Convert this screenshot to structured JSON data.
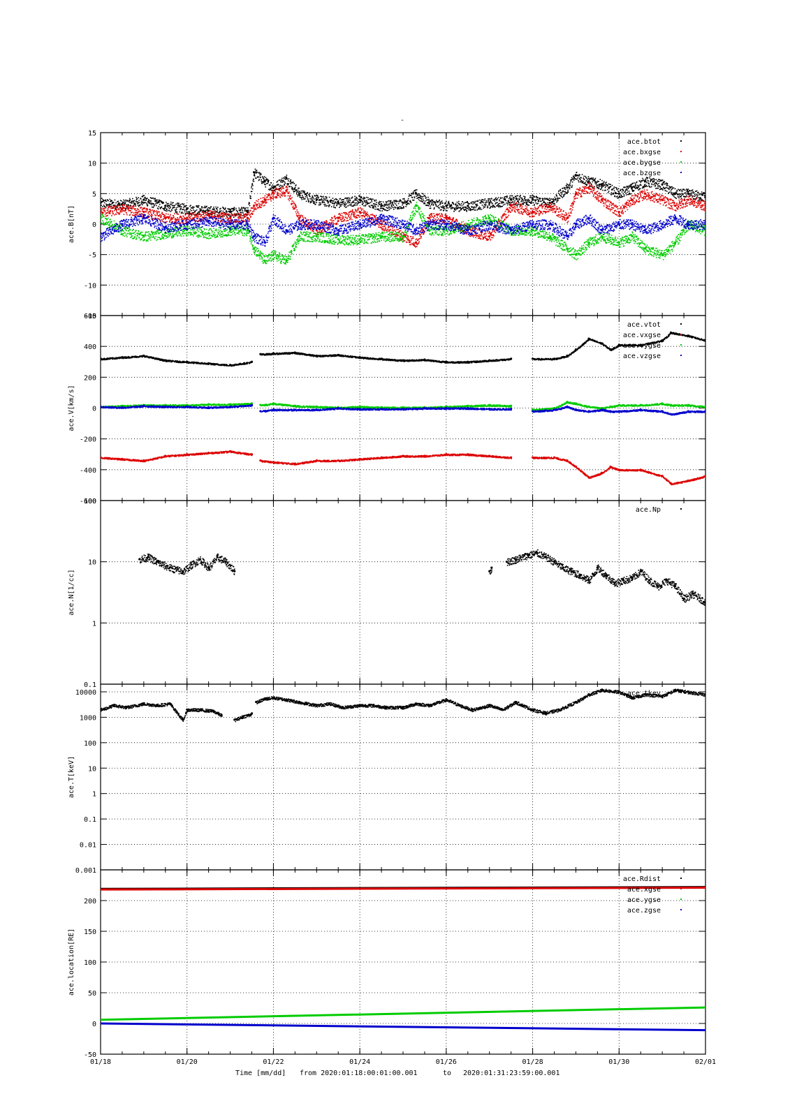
{
  "figure": {
    "top_mark": "-",
    "xlabel_parts": [
      "Time [mm/dd]",
      "from 2020:01:18:00:01:00.001",
      "to",
      "2020:01:31:23:59:00.001"
    ]
  },
  "chart_data": [
    {
      "type": "scatter",
      "ylabel": "ace.B[nT]",
      "ylim": [
        -15,
        15
      ],
      "yscale": "linear",
      "yticks": [
        -15,
        -10,
        -5,
        0,
        5,
        10,
        15
      ],
      "x_ticks_days": [
        18,
        20,
        22,
        24,
        26,
        28,
        30,
        32
      ],
      "grid": true,
      "legend_position": "top-right",
      "series": [
        {
          "name": "ace.btot",
          "color": "#000000",
          "x": [
            18.0,
            18.5,
            19.0,
            19.5,
            20.0,
            20.5,
            21.0,
            21.4,
            21.55,
            21.8,
            22.0,
            22.3,
            22.6,
            23.0,
            23.5,
            24.0,
            24.5,
            25.0,
            25.3,
            25.6,
            26.0,
            26.5,
            27.0,
            27.5,
            28.0,
            28.4,
            28.8,
            29.0,
            29.3,
            29.6,
            30.0,
            30.3,
            30.6,
            31.0,
            31.3,
            31.6,
            32.0
          ],
          "y": [
            3.5,
            3.2,
            4.0,
            3.0,
            2.5,
            2.2,
            2.0,
            2.0,
            8.5,
            7.0,
            6.0,
            7.5,
            5.0,
            4.0,
            3.5,
            4.0,
            3.0,
            3.5,
            5.0,
            3.5,
            3.0,
            3.0,
            3.5,
            4.0,
            4.0,
            3.5,
            6.0,
            8.0,
            7.0,
            6.5,
            5.0,
            6.0,
            7.0,
            6.5,
            5.0,
            5.0,
            4.5
          ]
        },
        {
          "name": "ace.bxgse",
          "color": "#dd0000",
          "x": [
            18.0,
            18.5,
            19.0,
            19.5,
            20.0,
            20.5,
            21.0,
            21.4,
            21.55,
            21.8,
            22.0,
            22.3,
            22.6,
            23.0,
            23.5,
            24.0,
            24.5,
            25.0,
            25.3,
            25.6,
            26.0,
            26.5,
            27.0,
            27.5,
            28.0,
            28.4,
            28.8,
            29.0,
            29.3,
            29.6,
            30.0,
            30.3,
            30.6,
            31.0,
            31.3,
            31.6,
            32.0
          ],
          "y": [
            2.0,
            2.5,
            2.0,
            1.0,
            1.0,
            1.5,
            1.0,
            1.0,
            3.0,
            4.0,
            5.0,
            5.5,
            1.0,
            -1.0,
            1.0,
            2.0,
            0.0,
            -2.0,
            -3.0,
            1.0,
            1.0,
            -1.0,
            -2.0,
            3.0,
            2.0,
            3.0,
            1.0,
            5.0,
            6.0,
            4.0,
            2.0,
            4.0,
            5.0,
            4.0,
            3.0,
            4.0,
            3.0
          ]
        },
        {
          "name": "ace.bygse",
          "color": "#00cc00",
          "x": [
            18.0,
            18.5,
            19.0,
            19.5,
            20.0,
            20.5,
            21.0,
            21.4,
            21.55,
            21.8,
            22.0,
            22.3,
            22.6,
            23.0,
            23.5,
            24.0,
            24.5,
            25.0,
            25.3,
            25.6,
            26.0,
            26.5,
            27.0,
            27.5,
            28.0,
            28.4,
            28.8,
            29.0,
            29.3,
            29.6,
            30.0,
            30.3,
            30.6,
            31.0,
            31.3,
            31.6,
            32.0
          ],
          "y": [
            1.0,
            -1.0,
            -2.0,
            -1.5,
            -1.0,
            -1.5,
            -1.0,
            -1.0,
            -4.0,
            -6.0,
            -5.0,
            -6.0,
            -2.0,
            -2.0,
            -2.5,
            -2.5,
            -2.0,
            -2.0,
            3.0,
            -1.0,
            -1.0,
            0.0,
            1.0,
            -1.0,
            -1.0,
            -2.0,
            -4.0,
            -5.0,
            -3.0,
            -2.0,
            -3.0,
            -2.0,
            -4.0,
            -5.0,
            -3.0,
            0.0,
            -1.0
          ]
        },
        {
          "name": "ace.bzgse",
          "color": "#0000cc",
          "x": [
            18.0,
            18.5,
            19.0,
            19.5,
            20.0,
            20.5,
            21.0,
            21.4,
            21.55,
            21.8,
            22.0,
            22.3,
            22.6,
            23.0,
            23.5,
            24.0,
            24.5,
            25.0,
            25.3,
            25.6,
            26.0,
            26.5,
            27.0,
            27.5,
            28.0,
            28.4,
            28.8,
            29.0,
            29.3,
            29.6,
            30.0,
            30.3,
            30.6,
            31.0,
            31.3,
            31.6,
            32.0
          ],
          "y": [
            -2.0,
            0.0,
            1.0,
            -0.5,
            0.0,
            0.5,
            0.0,
            0.0,
            -2.0,
            -3.0,
            1.0,
            -1.0,
            0.0,
            0.0,
            -1.0,
            0.0,
            1.0,
            0.0,
            -1.0,
            0.0,
            0.0,
            -1.0,
            0.0,
            -1.0,
            0.0,
            0.0,
            -2.0,
            0.0,
            1.0,
            -1.0,
            0.0,
            0.0,
            -1.0,
            0.0,
            1.0,
            0.0,
            0.0
          ]
        }
      ]
    },
    {
      "type": "scatter",
      "ylabel": "ace.V[km/s]",
      "ylim": [
        -600,
        600
      ],
      "yscale": "linear",
      "yticks": [
        -600,
        -400,
        -200,
        0,
        200,
        400,
        600
      ],
      "x_ticks_days": [
        18,
        20,
        22,
        24,
        26,
        28,
        30,
        32
      ],
      "grid": true,
      "legend_position": "top-right",
      "series": [
        {
          "name": "ace.vtot",
          "color": "#000000",
          "x": [
            18.0,
            18.5,
            19.0,
            19.5,
            20.0,
            20.5,
            21.0,
            21.5,
            21.6,
            21.7,
            22.0,
            22.5,
            23.0,
            23.5,
            24.0,
            24.5,
            25.0,
            25.5,
            26.0,
            26.5,
            27.0,
            27.5,
            27.8,
            28.0,
            28.5,
            28.8,
            29.0,
            29.3,
            29.6,
            29.8,
            30.0,
            30.5,
            31.0,
            31.2,
            31.6,
            32.0
          ],
          "y": [
            320,
            330,
            340,
            310,
            300,
            290,
            280,
            300,
            null,
            350,
            355,
            360,
            340,
            345,
            330,
            320,
            310,
            315,
            300,
            300,
            310,
            320,
            null,
            320,
            320,
            340,
            380,
            450,
            420,
            380,
            410,
            410,
            440,
            490,
            470,
            440
          ]
        },
        {
          "name": "ace.vxgse",
          "color": "#dd0000",
          "x": [
            18.0,
            18.5,
            19.0,
            19.5,
            20.0,
            20.5,
            21.0,
            21.5,
            21.6,
            21.7,
            22.0,
            22.5,
            23.0,
            23.5,
            24.0,
            24.5,
            25.0,
            25.5,
            26.0,
            26.5,
            27.0,
            27.5,
            27.8,
            28.0,
            28.5,
            28.8,
            29.0,
            29.3,
            29.6,
            29.8,
            30.0,
            30.5,
            31.0,
            31.2,
            31.6,
            32.0
          ],
          "y": [
            -320,
            -330,
            -340,
            -310,
            -300,
            -290,
            -280,
            -300,
            null,
            -340,
            -350,
            -360,
            -340,
            -340,
            -330,
            -320,
            -310,
            -310,
            -300,
            -300,
            -310,
            -320,
            null,
            -320,
            -320,
            -340,
            -380,
            -450,
            -420,
            -380,
            -400,
            -400,
            -440,
            -490,
            -470,
            -440
          ]
        },
        {
          "name": "ace.vygse",
          "color": "#00cc00",
          "x": [
            18.0,
            18.5,
            19.0,
            19.5,
            20.0,
            20.5,
            21.0,
            21.5,
            21.6,
            21.7,
            22.0,
            22.5,
            23.0,
            23.5,
            24.0,
            24.5,
            25.0,
            25.5,
            26.0,
            26.5,
            27.0,
            27.5,
            27.8,
            28.0,
            28.5,
            28.8,
            29.0,
            29.3,
            29.6,
            29.8,
            30.0,
            30.5,
            31.0,
            31.2,
            31.6,
            32.0
          ],
          "y": [
            10,
            15,
            20,
            20,
            20,
            25,
            25,
            30,
            null,
            20,
            30,
            15,
            10,
            5,
            10,
            5,
            5,
            5,
            10,
            15,
            20,
            15,
            null,
            -10,
            0,
            40,
            30,
            10,
            0,
            10,
            20,
            20,
            30,
            20,
            20,
            10
          ]
        },
        {
          "name": "ace.vzgse",
          "color": "#0000cc",
          "x": [
            18.0,
            18.5,
            19.0,
            19.5,
            20.0,
            20.5,
            21.0,
            21.5,
            21.6,
            21.7,
            22.0,
            22.5,
            23.0,
            23.5,
            24.0,
            24.5,
            25.0,
            25.5,
            26.0,
            26.5,
            27.0,
            27.5,
            27.8,
            28.0,
            28.5,
            28.8,
            29.0,
            29.3,
            29.6,
            29.8,
            30.0,
            30.5,
            31.0,
            31.2,
            31.6,
            32.0
          ],
          "y": [
            10,
            5,
            15,
            10,
            10,
            5,
            10,
            20,
            null,
            -20,
            -10,
            -10,
            -10,
            0,
            -5,
            -5,
            -5,
            0,
            0,
            0,
            -5,
            -5,
            null,
            -20,
            -10,
            10,
            -10,
            -20,
            -10,
            -20,
            -20,
            -10,
            -20,
            -40,
            -20,
            -20
          ]
        }
      ]
    },
    {
      "type": "scatter",
      "ylabel": "ace.N[1/cc]",
      "ylim": [
        0.1,
        100
      ],
      "yscale": "log",
      "yticks": [
        0.1,
        1,
        10,
        100
      ],
      "ytick_labels": [
        "0.1",
        "1",
        "10",
        "100"
      ],
      "x_ticks_days": [
        18,
        20,
        22,
        24,
        26,
        28,
        30,
        32
      ],
      "grid": true,
      "legend_position": "top-right",
      "series": [
        {
          "name": "ace.Np",
          "color": "#000000",
          "x": [
            18.9,
            19.1,
            19.3,
            19.6,
            19.9,
            20.1,
            20.3,
            20.5,
            20.7,
            20.9,
            21.1,
            null,
            27.0,
            27.05,
            null,
            27.4,
            27.6,
            27.9,
            28.1,
            28.3,
            28.5,
            28.7,
            28.9,
            29.1,
            29.3,
            29.5,
            29.7,
            29.9,
            30.1,
            30.3,
            30.5,
            30.7,
            30.9,
            31.1,
            31.3,
            31.5,
            31.7,
            32.0
          ],
          "y": [
            11,
            12,
            10,
            8,
            7,
            9,
            11,
            8,
            12,
            10,
            7,
            null,
            7,
            8,
            null,
            10,
            11,
            13,
            14,
            12,
            10,
            8,
            7,
            6,
            5,
            8,
            6,
            4.5,
            5,
            5.5,
            7,
            5,
            4,
            5,
            4,
            2.5,
            3,
            2.2
          ]
        }
      ]
    },
    {
      "type": "scatter",
      "ylabel": "ace.T[keV]",
      "ylim": [
        0.001,
        20000
      ],
      "yscale": "log",
      "yticks": [
        0.001,
        0.01,
        0.1,
        1,
        10,
        100,
        1000,
        10000
      ],
      "ytick_labels": [
        "0.001",
        "0.01",
        "0.1",
        "1",
        "10",
        "100",
        "1000",
        "10000"
      ],
      "x_ticks_days": [
        18,
        20,
        22,
        24,
        26,
        28,
        30,
        32
      ],
      "grid": true,
      "legend_position": "top-right",
      "series": [
        {
          "name": "ace.tkev",
          "color": "#000000",
          "x": [
            18.0,
            18.3,
            18.6,
            19.0,
            19.3,
            19.6,
            19.9,
            20.0,
            20.3,
            20.6,
            20.8,
            null,
            21.1,
            21.3,
            21.5,
            null,
            21.6,
            21.8,
            22.0,
            22.3,
            22.6,
            23.0,
            23.3,
            23.6,
            24.0,
            24.3,
            24.6,
            25.0,
            25.3,
            25.6,
            26.0,
            26.3,
            26.6,
            27.0,
            27.3,
            27.6,
            28.0,
            28.3,
            28.6,
            29.0,
            29.3,
            29.6,
            30.0,
            30.3,
            30.6,
            31.0,
            31.3,
            31.6,
            32.0
          ],
          "y": [
            2000,
            3000,
            2500,
            3500,
            3000,
            3500,
            800,
            2000,
            2000,
            1800,
            1200,
            null,
            800,
            1100,
            1400,
            null,
            4000,
            5500,
            6000,
            5000,
            4000,
            3000,
            3500,
            2500,
            3000,
            3000,
            2500,
            2500,
            3500,
            3000,
            5000,
            3000,
            2000,
            3000,
            2000,
            4000,
            2000,
            1500,
            2000,
            4000,
            8000,
            12000,
            10000,
            6000,
            8000,
            7000,
            12000,
            10000,
            8000
          ]
        }
      ]
    },
    {
      "type": "line",
      "ylabel": "ace.location[RE]",
      "ylim": [
        -50,
        250
      ],
      "yscale": "linear",
      "yticks": [
        -50,
        0,
        50,
        100,
        150,
        200
      ],
      "x_ticks_days": [
        18,
        20,
        22,
        24,
        26,
        28,
        30,
        32
      ],
      "x_tick_labels": [
        "01/18",
        "01/20",
        "01/22",
        "01/24",
        "01/26",
        "01/28",
        "01/30",
        "02/01"
      ],
      "grid": true,
      "legend_position": "top-right",
      "series": [
        {
          "name": "ace.Rdist",
          "color": "#000000",
          "x": [
            18,
            32
          ],
          "y": [
            219,
            222
          ]
        },
        {
          "name": "ace.xgse",
          "color": "#dd0000",
          "x": [
            18,
            32
          ],
          "y": [
            218,
            221
          ]
        },
        {
          "name": "ace.ygse",
          "color": "#00cc00",
          "x": [
            18,
            32
          ],
          "y": [
            6,
            26
          ]
        },
        {
          "name": "ace.zgse",
          "color": "#0000cc",
          "x": [
            18,
            32
          ],
          "y": [
            0,
            -11
          ]
        }
      ]
    }
  ]
}
